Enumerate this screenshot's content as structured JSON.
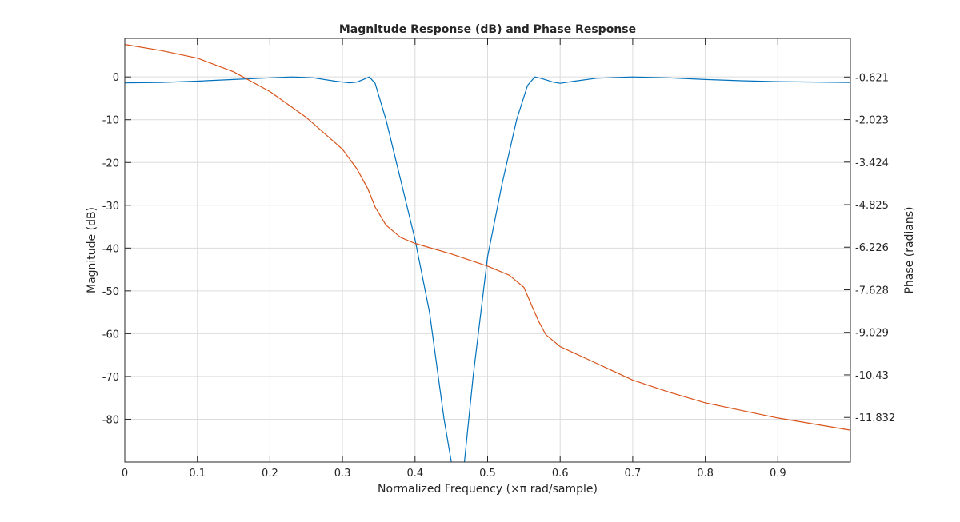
{
  "chart_data": {
    "type": "line",
    "title": "Magnitude Response (dB) and Phase Response",
    "xlabel": "Normalized Frequency (×π rad/sample)",
    "ylabel_left": "Magnitude (dB)",
    "ylabel_right": "Phase (radians)",
    "xlim": [
      0,
      1
    ],
    "ylim_left": [
      -90,
      9
    ],
    "ylim_right": [
      -13.3,
      0.65
    ],
    "x_ticks": [
      "0",
      "0.1",
      "0.2",
      "0.3",
      "0.4",
      "0.5",
      "0.6",
      "0.7",
      "0.8",
      "0.9"
    ],
    "x_tick_values": [
      0,
      0.1,
      0.2,
      0.3,
      0.4,
      0.5,
      0.6,
      0.7,
      0.8,
      0.9
    ],
    "left_ticks": [
      "0",
      "-10",
      "-20",
      "-30",
      "-40",
      "-50",
      "-60",
      "-70",
      "-80"
    ],
    "left_tick_values": [
      0,
      -10,
      -20,
      -30,
      -40,
      -50,
      -60,
      -70,
      -80
    ],
    "right_ticks": [
      "-0.621",
      "-2.023",
      "-3.424",
      "-4.825",
      "-6.226",
      "-7.628",
      "-9.029",
      "-10.43",
      "-11.832"
    ],
    "right_tick_values": [
      -0.621,
      -2.023,
      -3.424,
      -4.825,
      -6.226,
      -7.628,
      -9.029,
      -10.43,
      -11.832
    ],
    "grid": true,
    "series": [
      {
        "axis": "left",
        "color": "#0072bd",
        "x": [
          0,
          0.05,
          0.1,
          0.15,
          0.2,
          0.23,
          0.26,
          0.29,
          0.31,
          0.32,
          0.33,
          0.337,
          0.345,
          0.36,
          0.38,
          0.4,
          0.42,
          0.44,
          0.455,
          0.465,
          0.48,
          0.5,
          0.52,
          0.54,
          0.555,
          0.565,
          0.575,
          0.59,
          0.6,
          0.62,
          0.65,
          0.7,
          0.75,
          0.8,
          0.85,
          0.9,
          0.95,
          1.0
        ],
        "values": [
          -1.4,
          -1.3,
          -1.0,
          -0.6,
          -0.2,
          0.0,
          -0.2,
          -1.0,
          -1.4,
          -1.2,
          -0.5,
          0.0,
          -1.5,
          -10,
          -24,
          -38,
          -55,
          -80,
          -95,
          -95,
          -70,
          -42,
          -25,
          -10,
          -2,
          0.0,
          -0.4,
          -1.2,
          -1.5,
          -1.0,
          -0.3,
          0.0,
          -0.2,
          -0.6,
          -0.9,
          -1.1,
          -1.2,
          -1.3
        ]
      },
      {
        "axis": "right",
        "color": "#d95319",
        "x": [
          0,
          0.05,
          0.1,
          0.15,
          0.2,
          0.25,
          0.3,
          0.32,
          0.335,
          0.345,
          0.36,
          0.38,
          0.4,
          0.45,
          0.5,
          0.53,
          0.55,
          0.56,
          0.57,
          0.58,
          0.6,
          0.65,
          0.7,
          0.75,
          0.8,
          0.85,
          0.9,
          0.95,
          1.0
        ],
        "values": [
          0.45,
          0.25,
          0.0,
          -0.45,
          -1.1,
          -1.95,
          -3.0,
          -3.65,
          -4.3,
          -4.9,
          -5.5,
          -5.9,
          -6.1,
          -6.45,
          -6.85,
          -7.15,
          -7.55,
          -8.1,
          -8.65,
          -9.1,
          -9.5,
          -10.05,
          -10.6,
          -11.0,
          -11.35,
          -11.6,
          -11.85,
          -12.05,
          -12.25
        ]
      }
    ]
  }
}
